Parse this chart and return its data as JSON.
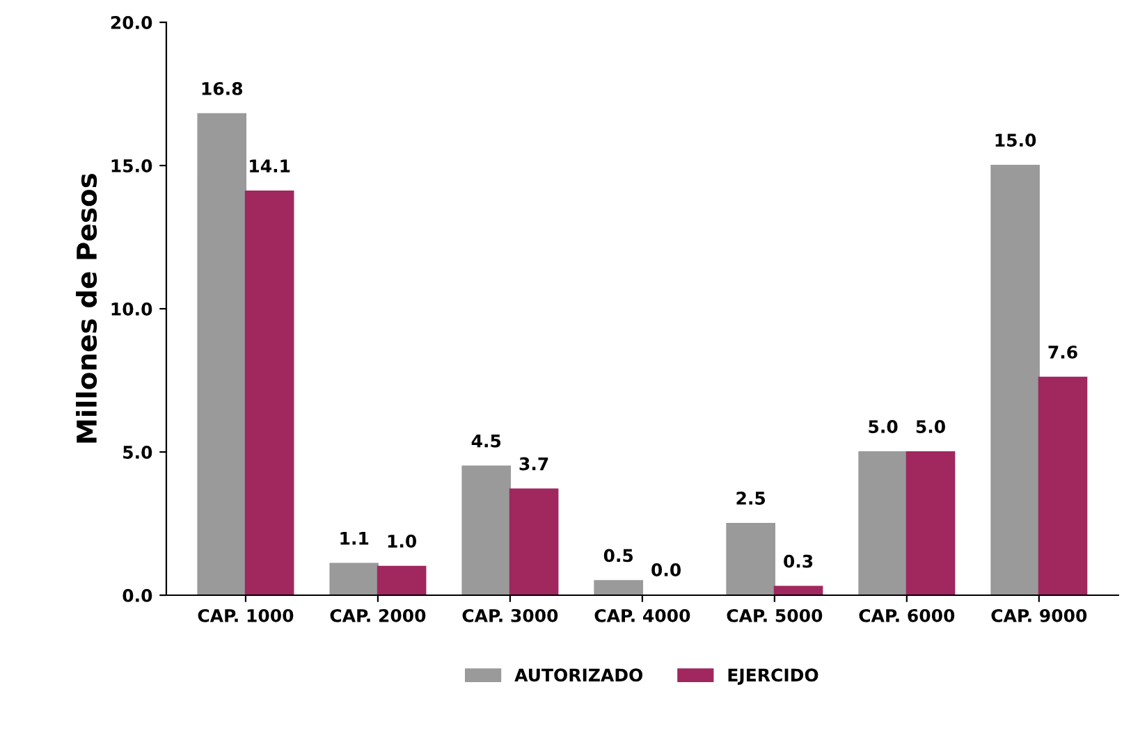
{
  "chart_data": {
    "type": "bar",
    "ylabel": "Millones de Pesos",
    "categories": [
      "CAP. 1000",
      "CAP. 2000",
      "CAP. 3000",
      "CAP. 4000",
      "CAP. 5000",
      "CAP. 6000",
      "CAP. 9000"
    ],
    "series": [
      {
        "name": "AUTORIZADO",
        "color": "#9a9a9a",
        "values": [
          16.8,
          1.1,
          4.5,
          0.5,
          2.5,
          5.0,
          15.0
        ],
        "value_labels": [
          "16.8",
          "1.1",
          "4.5",
          "0.5",
          "2.5",
          "5.0",
          "15.0"
        ]
      },
      {
        "name": "EJERCIDO",
        "color": "#a0285f",
        "values": [
          14.1,
          1.0,
          3.7,
          0.0,
          0.3,
          5.0,
          7.6
        ],
        "value_labels": [
          "14.1",
          "1.0",
          "3.7",
          "0.0",
          "0.3",
          "5.0",
          "7.6"
        ]
      }
    ],
    "ylim": [
      0,
      20
    ],
    "yticks": [
      {
        "value": 0,
        "label": "0.0"
      },
      {
        "value": 5,
        "label": "5.0"
      },
      {
        "value": 10,
        "label": "10.0"
      },
      {
        "value": 15,
        "label": "15.0"
      },
      {
        "value": 20,
        "label": "20.0"
      }
    ],
    "grid": false,
    "legend": "bottom"
  }
}
